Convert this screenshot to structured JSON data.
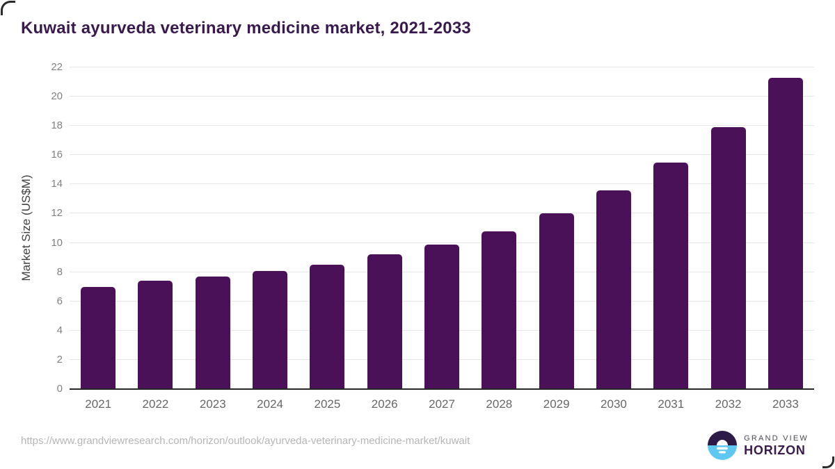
{
  "page": {
    "source_url": "https://www.grandviewresearch.com/horizon/outlook/ayurveda-veterinary-medicine-market/kuwait"
  },
  "chart_data": {
    "type": "bar",
    "title": "Kuwait ayurveda veterinary medicine market, 2021-2033",
    "xlabel": "",
    "ylabel": "Market Size (US$M)",
    "categories": [
      "2021",
      "2022",
      "2023",
      "2024",
      "2025",
      "2026",
      "2027",
      "2028",
      "2029",
      "2030",
      "2031",
      "2032",
      "2033"
    ],
    "values": [
      7.0,
      7.4,
      7.7,
      8.1,
      8.5,
      9.2,
      9.9,
      10.8,
      12.0,
      13.6,
      15.5,
      17.9,
      21.3
    ],
    "ylim": [
      0,
      22
    ],
    "yticks": [
      0,
      2,
      4,
      6,
      8,
      10,
      12,
      14,
      16,
      18,
      20,
      22
    ],
    "grid": true,
    "legend": false,
    "bar_color": "#4a1158"
  },
  "colors": {
    "title": "#3a1a4e",
    "bar": "#4a1158",
    "gridline": "#e6e6e6",
    "axis_line": "#262626",
    "y_tick": "#808080",
    "x_tick": "#666666",
    "url_text": "#b5b5b5",
    "logo_blue": "#5ec7f2",
    "logo_dark_purple": "#2e1a47",
    "logo_horizon_text": "#3b1b4e"
  },
  "logo": {
    "brand_top": "GRAND VIEW",
    "brand_bottom": "HORIZON"
  }
}
